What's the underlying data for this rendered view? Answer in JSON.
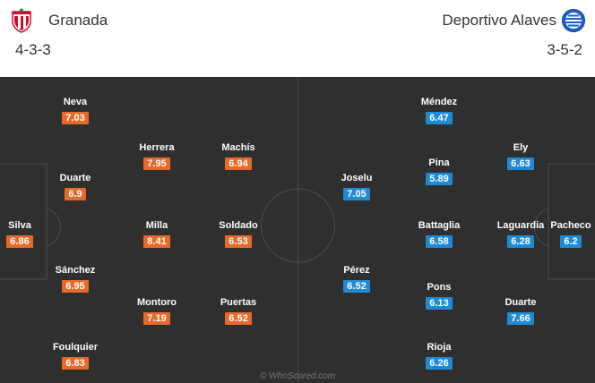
{
  "home": {
    "name": "Granada",
    "formation": "4-3-3",
    "crest_icon": "granada-crest-icon",
    "color": "#e86a2b",
    "players": [
      {
        "name": "Neva",
        "rating": "7.03"
      },
      {
        "name": "Herrera",
        "rating": "7.95"
      },
      {
        "name": "Machís",
        "rating": "6.94"
      },
      {
        "name": "Duarte",
        "rating": "6.9"
      },
      {
        "name": "Silva",
        "rating": "6.86"
      },
      {
        "name": "Milla",
        "rating": "8.41"
      },
      {
        "name": "Soldado",
        "rating": "6.53"
      },
      {
        "name": "Sánchez",
        "rating": "6.95"
      },
      {
        "name": "Montoro",
        "rating": "7.19"
      },
      {
        "name": "Puertas",
        "rating": "6.52"
      },
      {
        "name": "Foulquier",
        "rating": "6.83"
      }
    ]
  },
  "away": {
    "name": "Deportivo Alaves",
    "formation": "3-5-2",
    "crest_icon": "alaves-crest-icon",
    "color": "#1e8ad6",
    "players": [
      {
        "name": "Méndez",
        "rating": "6.47"
      },
      {
        "name": "Ely",
        "rating": "6.63"
      },
      {
        "name": "Pina",
        "rating": "5.89"
      },
      {
        "name": "Joselu",
        "rating": "7.05"
      },
      {
        "name": "Battaglia",
        "rating": "6.58"
      },
      {
        "name": "Laguardia",
        "rating": "6.28"
      },
      {
        "name": "Pacheco",
        "rating": "6.2"
      },
      {
        "name": "Pérez",
        "rating": "6.52"
      },
      {
        "name": "Pons",
        "rating": "6.13"
      },
      {
        "name": "Duarte",
        "rating": "7.66"
      },
      {
        "name": "Rioja",
        "rating": "6.26"
      }
    ]
  },
  "watermark": "© WhoScored.com"
}
